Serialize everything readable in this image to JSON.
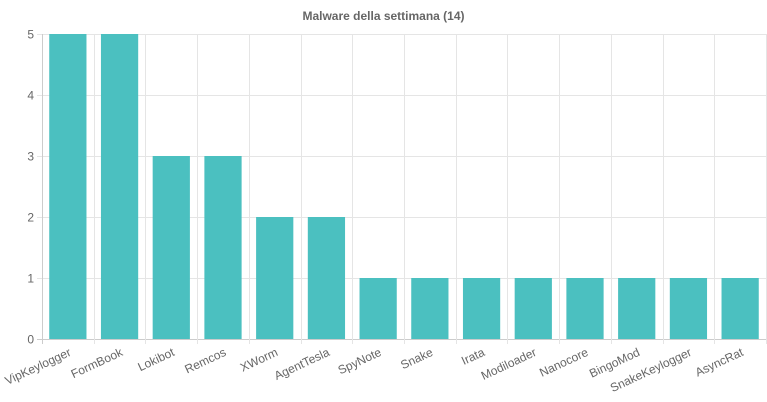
{
  "chart_data": {
    "type": "bar",
    "title": "Malware della settimana (14)",
    "categories": [
      "VipKeylogger",
      "FormBook",
      "Lokibot",
      "Remcos",
      "XWorm",
      "AgentTesla",
      "SpyNote",
      "Snake",
      "Irata",
      "Modiloader",
      "Nanocore",
      "BingoMod",
      "SnakeKeylogger",
      "AsyncRat"
    ],
    "values": [
      5,
      5,
      3,
      3,
      2,
      2,
      1,
      1,
      1,
      1,
      1,
      1,
      1,
      1
    ],
    "ylim": [
      0,
      5
    ],
    "yticks": [
      "0",
      "1",
      "2",
      "3",
      "4",
      "5"
    ],
    "xlabel": "",
    "ylabel": "",
    "grid": true,
    "colors": {
      "bar": "#4bc0c0",
      "grid": "#e5e5e5",
      "axis": "#cccccc",
      "text": "#666666"
    }
  }
}
